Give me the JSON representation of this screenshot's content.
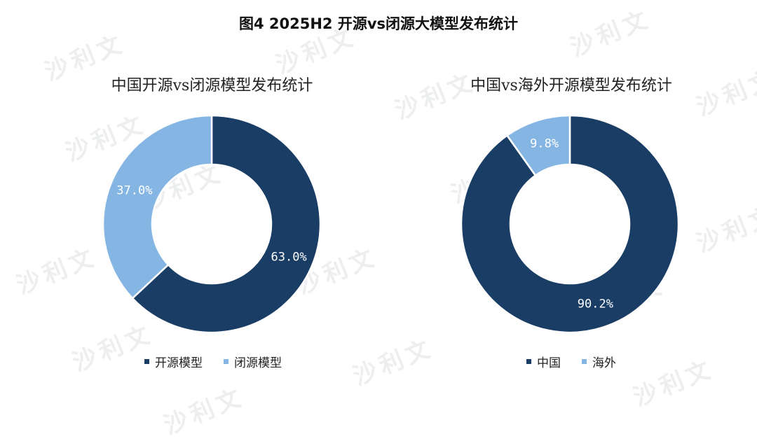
{
  "title": "图4 2025H2 开源vs闭源大模型发布统计",
  "watermark_text": "沙利文",
  "colors": {
    "dark": "#1a3d66",
    "light": "#85b5e3"
  },
  "chart_data": [
    {
      "type": "pie",
      "variant": "donut",
      "title": "中国开源vs闭源模型发布统计",
      "series": [
        {
          "name": "开源模型",
          "value": 63.0,
          "label": "63.0%",
          "color": "#1a3d66"
        },
        {
          "name": "闭源模型",
          "value": 37.0,
          "label": "37.0%",
          "color": "#85b5e3"
        }
      ],
      "legend": [
        "开源模型",
        "闭源模型"
      ],
      "legend_position": "bottom"
    },
    {
      "type": "pie",
      "variant": "donut",
      "title": "中国vs海外开源模型发布统计",
      "series": [
        {
          "name": "中国",
          "value": 90.2,
          "label": "90.2%",
          "color": "#1a3d66"
        },
        {
          "name": "海外",
          "value": 9.8,
          "label": "9.8%",
          "color": "#85b5e3"
        }
      ],
      "legend": [
        "中国",
        "海外"
      ],
      "legend_position": "bottom"
    }
  ]
}
